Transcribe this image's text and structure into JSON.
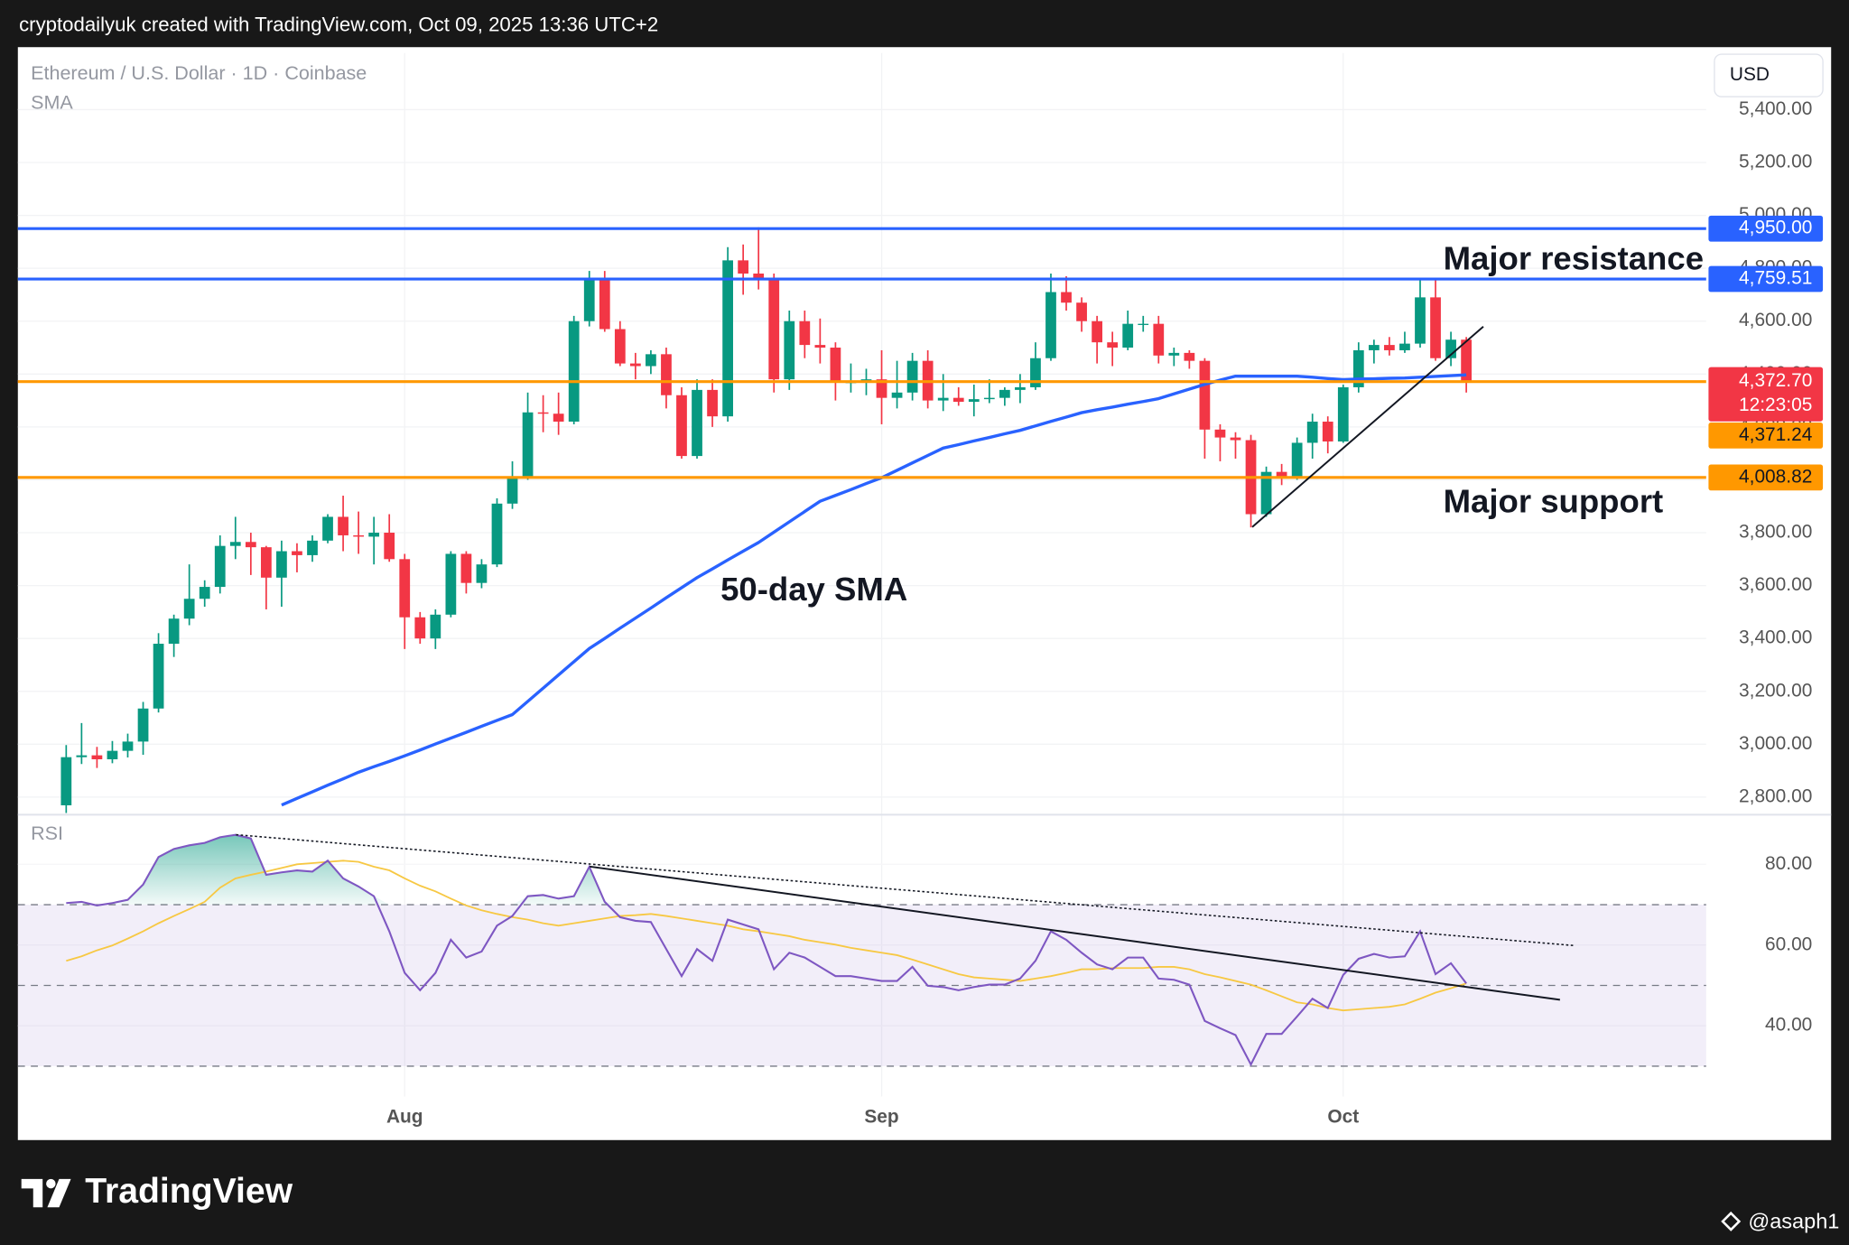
{
  "header": "cryptodailyuk created with TradingView.com, Oct 09, 2025 13:36 UTC+2",
  "footer": {
    "brand": "TradingView",
    "author": "@asaph1"
  },
  "chart_data": [
    {
      "type": "candlestick",
      "title": "Ethereum / U.S. Dollar · 1D · Coinbase",
      "y_label": "USD",
      "categories": [
        null,
        null,
        null,
        null,
        null,
        null,
        null,
        null,
        null,
        null,
        null,
        null,
        null,
        null,
        null,
        null,
        null,
        null,
        null,
        null,
        null,
        null,
        "Aug",
        null,
        null,
        null,
        null,
        null,
        null,
        null,
        null,
        null,
        null,
        null,
        null,
        null,
        null,
        null,
        null,
        null,
        null,
        null,
        null,
        null,
        null,
        null,
        null,
        null,
        null,
        null,
        null,
        null,
        null,
        "Sep",
        null,
        null,
        null,
        null,
        null,
        null,
        null,
        null,
        null,
        null,
        null,
        null,
        null,
        null,
        null,
        null,
        null,
        null,
        null,
        null,
        null,
        null,
        null,
        null,
        null,
        null,
        null,
        null,
        null,
        "Oct",
        null,
        null,
        null,
        null,
        null,
        null,
        null,
        null
      ],
      "open": [
        2769,
        2951,
        2958,
        2943,
        2975,
        3010,
        3135,
        3380,
        3475,
        3550,
        3595,
        3750,
        3765,
        3745,
        3630,
        3730,
        3715,
        3770,
        3860,
        3790,
        3785,
        3800,
        3700,
        3480,
        3400,
        3490,
        3720,
        3610,
        3680,
        3910,
        4010,
        4255,
        4250,
        4220,
        4600,
        4760,
        4570,
        4440,
        4430,
        4475,
        4320,
        4090,
        4340,
        4240,
        4830,
        4780,
        4760,
        4380,
        4600,
        4510,
        4500,
        4370,
        4370,
        4380,
        4310,
        4330,
        4450,
        4300,
        4310,
        4295,
        4305,
        4310,
        4340,
        4350,
        4460,
        4710,
        4670,
        4600,
        4520,
        4500,
        4590,
        4590,
        4470,
        4480,
        4450,
        4190,
        4160,
        4150,
        3870,
        4030,
        4010,
        4140,
        4220,
        4145,
        4350,
        4490,
        4510,
        4490,
        4515,
        4690,
        4460,
        4530
      ],
      "high": [
        2997,
        3080,
        2990,
        3012,
        3040,
        3160,
        3420,
        3490,
        3680,
        3620,
        3790,
        3860,
        3800,
        3750,
        3770,
        3760,
        3790,
        3870,
        3940,
        3880,
        3860,
        3870,
        3720,
        3500,
        3510,
        3730,
        3730,
        3700,
        3930,
        4070,
        4330,
        4320,
        4330,
        4620,
        4790,
        4790,
        4600,
        4480,
        4490,
        4500,
        4350,
        4380,
        4380,
        4880,
        4890,
        4955,
        4780,
        4640,
        4640,
        4610,
        4520,
        4440,
        4420,
        4490,
        4450,
        4480,
        4490,
        4400,
        4350,
        4360,
        4380,
        4350,
        4400,
        4520,
        4780,
        4770,
        4690,
        4620,
        4560,
        4640,
        4620,
        4620,
        4500,
        4490,
        4460,
        4210,
        4180,
        4170,
        4050,
        4060,
        4160,
        4250,
        4240,
        4360,
        4520,
        4530,
        4540,
        4560,
        4760,
        4760,
        4560,
        4540
      ],
      "low": [
        2740,
        2925,
        2910,
        2928,
        2950,
        2960,
        3120,
        3330,
        3450,
        3520,
        3570,
        3700,
        3640,
        3510,
        3520,
        3650,
        3690,
        3760,
        3730,
        3720,
        3680,
        3690,
        3360,
        3380,
        3360,
        3480,
        3570,
        3590,
        3670,
        3890,
        4000,
        4180,
        4170,
        4210,
        4580,
        4560,
        4430,
        4380,
        4400,
        4270,
        4080,
        4080,
        4200,
        4220,
        4700,
        4720,
        4330,
        4340,
        4460,
        4440,
        4300,
        4330,
        4320,
        4210,
        4270,
        4300,
        4270,
        4260,
        4280,
        4240,
        4290,
        4280,
        4290,
        4340,
        4450,
        4640,
        4560,
        4440,
        4430,
        4490,
        4560,
        4440,
        4430,
        4420,
        4080,
        4070,
        4080,
        3820,
        3860,
        3980,
        4000,
        4080,
        4100,
        4140,
        4330,
        4440,
        4470,
        4480,
        4500,
        4450,
        4430,
        4330
      ],
      "close": [
        2951,
        2958,
        2943,
        2975,
        3010,
        3135,
        3380,
        3475,
        3550,
        3595,
        3750,
        3765,
        3745,
        3630,
        3730,
        3715,
        3770,
        3860,
        3790,
        3785,
        3800,
        3700,
        3480,
        3400,
        3490,
        3720,
        3610,
        3680,
        3910,
        4010,
        4255,
        4250,
        4220,
        4600,
        4760,
        4570,
        4440,
        4430,
        4475,
        4320,
        4090,
        4340,
        4240,
        4830,
        4780,
        4760,
        4380,
        4600,
        4510,
        4500,
        4370,
        4370,
        4380,
        4310,
        4330,
        4450,
        4300,
        4310,
        4295,
        4305,
        4310,
        4340,
        4350,
        4460,
        4710,
        4670,
        4600,
        4520,
        4500,
        4590,
        4590,
        4470,
        4480,
        4450,
        4190,
        4160,
        4150,
        3870,
        4030,
        4010,
        4140,
        4220,
        4145,
        4350,
        4490,
        4510,
        4490,
        4515,
        4690,
        4460,
        4530,
        4372.7
      ],
      "up_color": "#089981",
      "down_color": "#f23645",
      "series": [
        {
          "name": "SMA",
          "color": "#2962ff",
          "values": [
            null,
            null,
            null,
            null,
            null,
            null,
            null,
            null,
            null,
            null,
            null,
            null,
            null,
            null,
            2770,
            2795,
            2820,
            2845,
            2869,
            2894,
            2915,
            2935,
            2956,
            2978,
            3001,
            3023,
            3045,
            3068,
            3090,
            3112,
            3162,
            3212,
            3262,
            3312,
            3362,
            3400,
            3439,
            3477,
            3515,
            3554,
            3592,
            3630,
            3663,
            3697,
            3730,
            3763,
            3802,
            3841,
            3880,
            3919,
            3941,
            3963,
            3986,
            4008,
            4036,
            4064,
            4092,
            4120,
            4133,
            4147,
            4160,
            4174,
            4187,
            4204,
            4221,
            4237,
            4254,
            4265,
            4275,
            4286,
            4296,
            4307,
            4325,
            4343,
            4361,
            4377,
            4392,
            4392,
            4392,
            4392,
            4392,
            4388,
            4383,
            4379,
            4381,
            4382,
            4384,
            4385,
            4388,
            4391,
            4394,
            4397
          ]
        }
      ],
      "ylim": [
        2738,
        5614
      ],
      "yticks": [
        {
          "value": 2800,
          "label": "2,800.00"
        },
        {
          "value": 3000,
          "label": "3,000.00"
        },
        {
          "value": 3200,
          "label": "3,200.00"
        },
        {
          "value": 3400,
          "label": "3,400.00"
        },
        {
          "value": 3600,
          "label": "3,600.00"
        },
        {
          "value": 3800,
          "label": "3,800.00"
        },
        {
          "value": 4000,
          "label": "4,000.00"
        },
        {
          "value": 4200,
          "label": "4,200.00"
        },
        {
          "value": 4400,
          "label": "4,400.00"
        },
        {
          "value": 4600,
          "label": "4,600.00"
        },
        {
          "value": 4800,
          "label": "4,800.00"
        },
        {
          "value": 5000,
          "label": "5,000.00"
        },
        {
          "value": 5200,
          "label": "5,200.00"
        },
        {
          "value": 5400,
          "label": "5,400.00"
        }
      ],
      "grid": true,
      "last_price": {
        "value": 4372.7,
        "label": "4,372.70",
        "countdown": "12:23:05",
        "color": "#f23645"
      },
      "levels": [
        {
          "value": 4950,
          "label": "4,950.00",
          "color": "#2962ff",
          "text_color": "#ffffff"
        },
        {
          "value": 4759.51,
          "label": "4,759.51",
          "color": "#2962ff",
          "text_color": "#ffffff"
        },
        {
          "value": 4371.24,
          "label": "4,371.24",
          "color": "#ff9800",
          "text_color": "#131722"
        },
        {
          "value": 4008.82,
          "label": "4,008.82",
          "color": "#ff9800",
          "text_color": "#131722"
        }
      ],
      "annotations": [
        {
          "text": "Major resistance"
        },
        {
          "text": "Major support"
        },
        {
          "text": "50-day SMA"
        }
      ]
    },
    {
      "type": "line",
      "series": [
        {
          "name": "RSI",
          "color": "#7e57c2",
          "values": [
            70.4,
            70.7,
            69.8,
            70.4,
            71.2,
            75.0,
            81.8,
            83.8,
            84.7,
            85.3,
            86.7,
            87.3,
            86.4,
            77.4,
            78.0,
            78.5,
            78.2,
            80.9,
            76.5,
            74.5,
            72.1,
            63.4,
            53.1,
            48.8,
            53.1,
            61.3,
            56.9,
            58.4,
            64.8,
            67.2,
            72.1,
            72.4,
            71.5,
            72.1,
            79.4,
            70.7,
            66.9,
            66.0,
            65.7,
            59.0,
            52.3,
            59.0,
            56.1,
            66.3,
            65.1,
            63.9,
            54.0,
            58.1,
            56.9,
            54.6,
            52.3,
            52.3,
            51.7,
            51.1,
            51.1,
            54.6,
            49.9,
            49.6,
            48.8,
            49.6,
            50.2,
            50.2,
            51.7,
            56.1,
            63.4,
            61.3,
            58.1,
            55.2,
            54.0,
            56.9,
            56.9,
            51.7,
            51.4,
            50.2,
            41.2,
            39.4,
            37.7,
            30.4,
            38.0,
            38.0,
            42.3,
            46.7,
            44.4,
            52.6,
            56.6,
            57.8,
            56.9,
            57.2,
            63.4,
            52.8,
            55.5,
            50.5
          ]
        },
        {
          "color": "#f7c843",
          "values": [
            56.1,
            57.2,
            58.7,
            59.9,
            61.6,
            63.4,
            65.4,
            67.2,
            68.9,
            70.7,
            74.2,
            76.5,
            77.4,
            78.2,
            79.1,
            80.0,
            80.3,
            80.6,
            80.9,
            80.6,
            79.4,
            78.5,
            76.5,
            74.7,
            73.3,
            71.5,
            69.8,
            68.6,
            67.7,
            66.9,
            66.3,
            65.4,
            64.8,
            65.4,
            66.0,
            66.6,
            67.2,
            67.4,
            67.7,
            67.2,
            66.6,
            66.0,
            65.4,
            64.8,
            63.9,
            63.4,
            62.8,
            62.2,
            61.3,
            60.7,
            60.1,
            59.3,
            58.7,
            58.1,
            57.5,
            56.4,
            55.2,
            54.0,
            52.8,
            52.0,
            51.7,
            51.4,
            51.1,
            51.7,
            52.3,
            53.1,
            54.0,
            54.0,
            54.3,
            54.3,
            54.3,
            54.6,
            54.6,
            54.0,
            52.8,
            52.0,
            51.1,
            50.2,
            48.8,
            47.3,
            45.8,
            45.3,
            44.4,
            43.8,
            44.1,
            44.4,
            44.7,
            45.3,
            46.7,
            48.2,
            49.3,
            50.5
          ]
        }
      ],
      "ylim": [
        22.5,
        92
      ],
      "yticks": [
        {
          "value": 40,
          "label": "40.00"
        },
        {
          "value": 60,
          "label": "60.00"
        },
        {
          "value": 80,
          "label": "80.00"
        }
      ],
      "band_levels": [
        70,
        50,
        30
      ],
      "band_color": "#7e57c2"
    }
  ]
}
